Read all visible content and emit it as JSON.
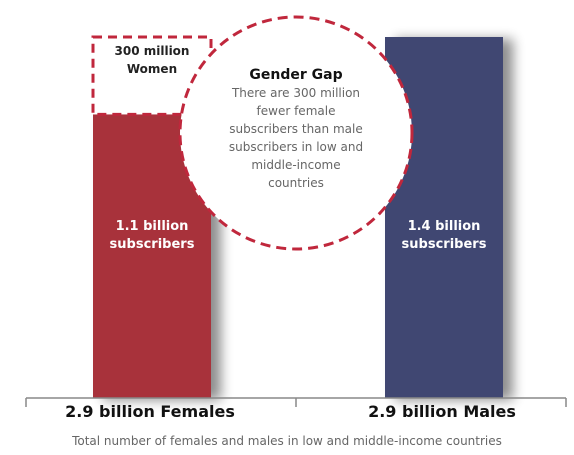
{
  "chart_data": {
    "type": "bar",
    "categories": [
      "2.9 billion Females",
      "2.9 billion Males"
    ],
    "values": [
      1.1,
      1.4
    ],
    "unit": "billion subscribers",
    "value_labels": [
      "1.1 billion\nsubscribers",
      "1.4 billion\nsubscribers"
    ],
    "gap": {
      "value": 0.3,
      "label": "300 million\nWomen"
    },
    "callout": {
      "title": "Gender Gap",
      "text": "There are 300 million\nfewer female\nsubscribers than male\nsubscribers in low and\nmiddle-income\ncountries"
    },
    "caption": "Total number of females and males in low and middle-income countries",
    "ylim": [
      0,
      1.4
    ],
    "grid": false,
    "colors": {
      "female": "#a8333a",
      "male": "#3f4672",
      "dash": "#c0273c",
      "text": "#222222",
      "muted": "#666666",
      "axis": "#888888"
    }
  }
}
